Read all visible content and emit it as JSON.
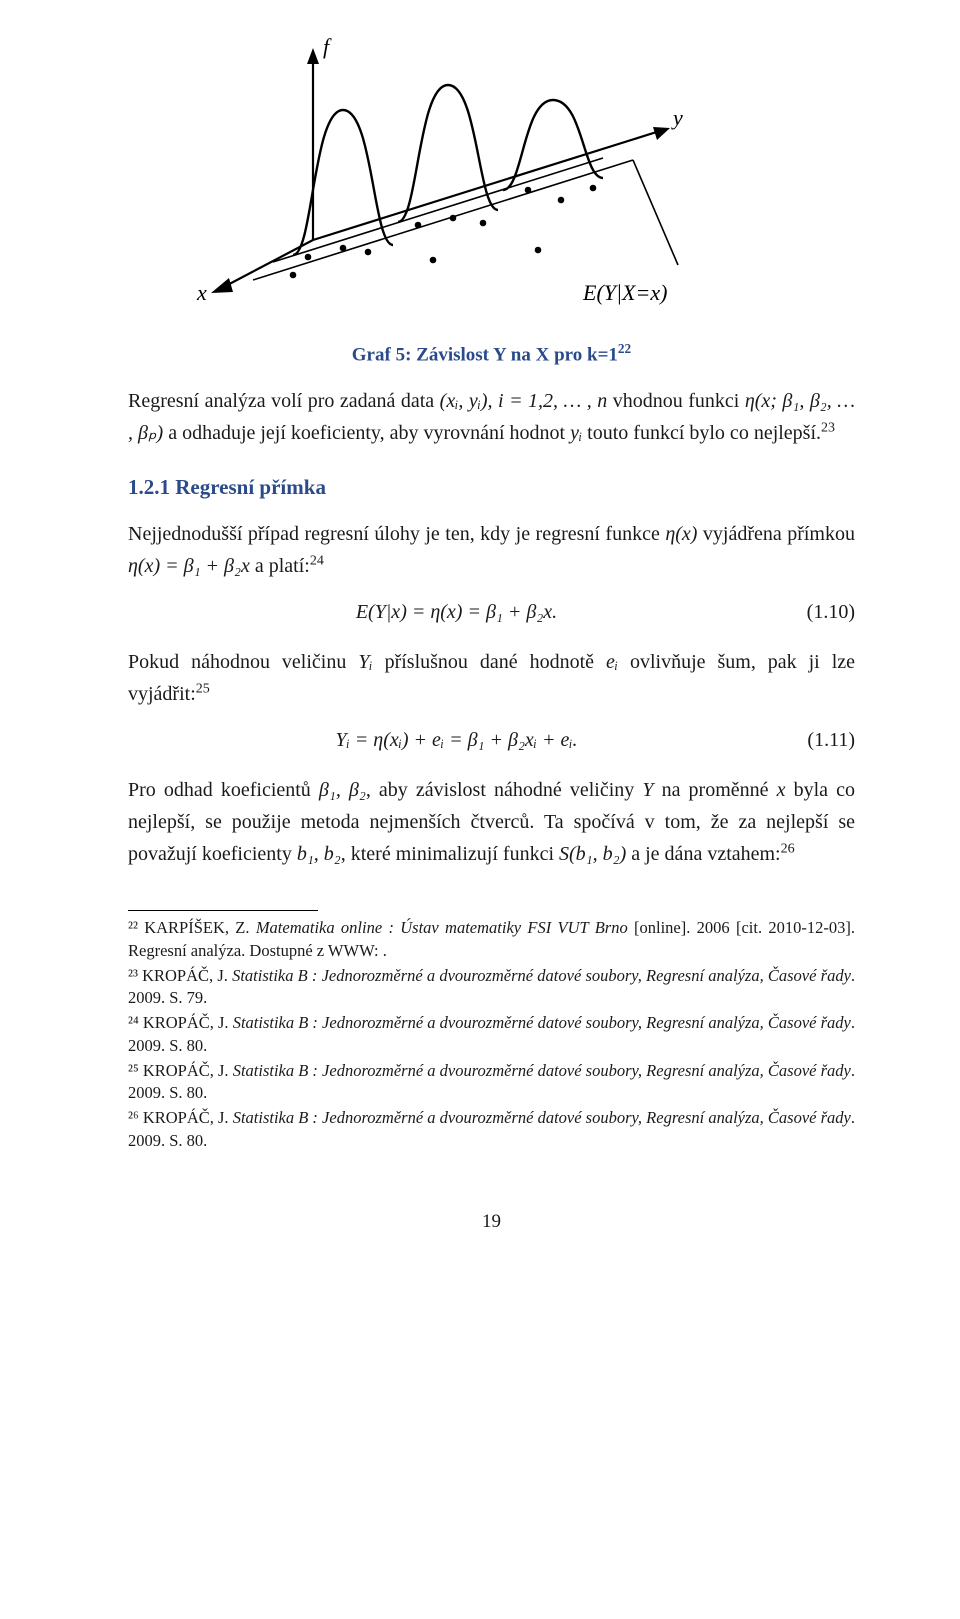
{
  "figure": {
    "axis_f": "f",
    "axis_y": "y",
    "axis_x": "x",
    "label_E": "E(Y|X=x)",
    "stroke": "#000000",
    "fill": "#ffffff"
  },
  "caption": "Graf 5: Závislost Y na X pro k=1",
  "caption_sup": "22",
  "para1_a": "Regresní analýza volí pro zadaná data ",
  "para1_math1": "(xᵢ, yᵢ), i = 1,2, … , n",
  "para1_b": " vhodnou funkci ",
  "para1_math2": "η(x; β₁, β₂, … , βₚ)",
  "para1_c": " a odhaduje její koeficienty, aby vyrovnání hodnot ",
  "para1_math3": "yᵢ",
  "para1_d": " touto funkcí bylo co nejlepší.",
  "para1_sup": "23",
  "heading": "1.2.1   Regresní přímka",
  "para2_a": "Nejjednodušší případ regresní úlohy je ten, kdy je regresní funkce ",
  "para2_m1": "η(x)",
  "para2_b": " vyjádřena přímkou ",
  "para2_m2": "η(x) = β₁ + β₂x",
  "para2_c": " a platí:",
  "para2_sup": "24",
  "eq1": "E(Y|x) = η(x) = β₁ + β₂x.",
  "eq1_num": "(1.10)",
  "para3_a": "Pokud náhodnou veličinu ",
  "para3_m1": "Yᵢ",
  "para3_b": " příslušnou dané hodnotě ",
  "para3_m2": "eᵢ",
  "para3_c": " ovlivňuje šum, pak ji lze vyjádřit:",
  "para3_sup": "25",
  "eq2": "Yᵢ = η(xᵢ) + eᵢ = β₁ + β₂xᵢ + eᵢ.",
  "eq2_num": "(1.11)",
  "para4_a": "Pro odhad koeficientů ",
  "para4_m1": "β₁, β₂",
  "para4_b": ", aby závislost náhodné veličiny ",
  "para4_m2": "Y",
  "para4_c": " na proměnné ",
  "para4_m3": "x",
  "para4_d": " byla co nejlepší, se použije metoda nejmenších čtverců. Ta spočívá v tom, že za nejlepší se považují koeficienty ",
  "para4_m4": "b₁, b₂",
  "para4_e": ", které minimalizují funkci ",
  "para4_m5": "S(b₁, b₂)",
  "para4_f": " a je dána vztahem:",
  "para4_sup": "26",
  "footnotes": {
    "f22": "²² KARPÍŠEK, Z. <i>Matematika online : Ústav matematiky FSI VUT Brno</i> [online]. 2006 [cit. 2010-12-03]. Regresní analýza. Dostupné z WWW: <http://mathonline.fme.vutbr.cz/download.aspx?id_file=524>.",
    "f23": "²³ KROPÁČ, J. <i>Statistika B : Jednorozměrné a dvourozměrné datové soubory, Regresní analýza, Časové řady</i>. 2009. S. 79.",
    "f24": "²⁴ KROPÁČ, J. <i>Statistika B : Jednorozměrné a dvourozměrné datové soubory, Regresní analýza, Časové řady</i>. 2009. S. 80.",
    "f25": "²⁵ KROPÁČ, J. <i>Statistika B : Jednorozměrné a dvourozměrné datové soubory, Regresní analýza, Časové řady</i>. 2009. S. 80.",
    "f26": "²⁶ KROPÁČ, J. <i>Statistika B : Jednorozměrné a dvourozměrné datové soubory, Regresní analýza, Časové řady</i>. 2009. S. 80."
  },
  "page_number": "19"
}
